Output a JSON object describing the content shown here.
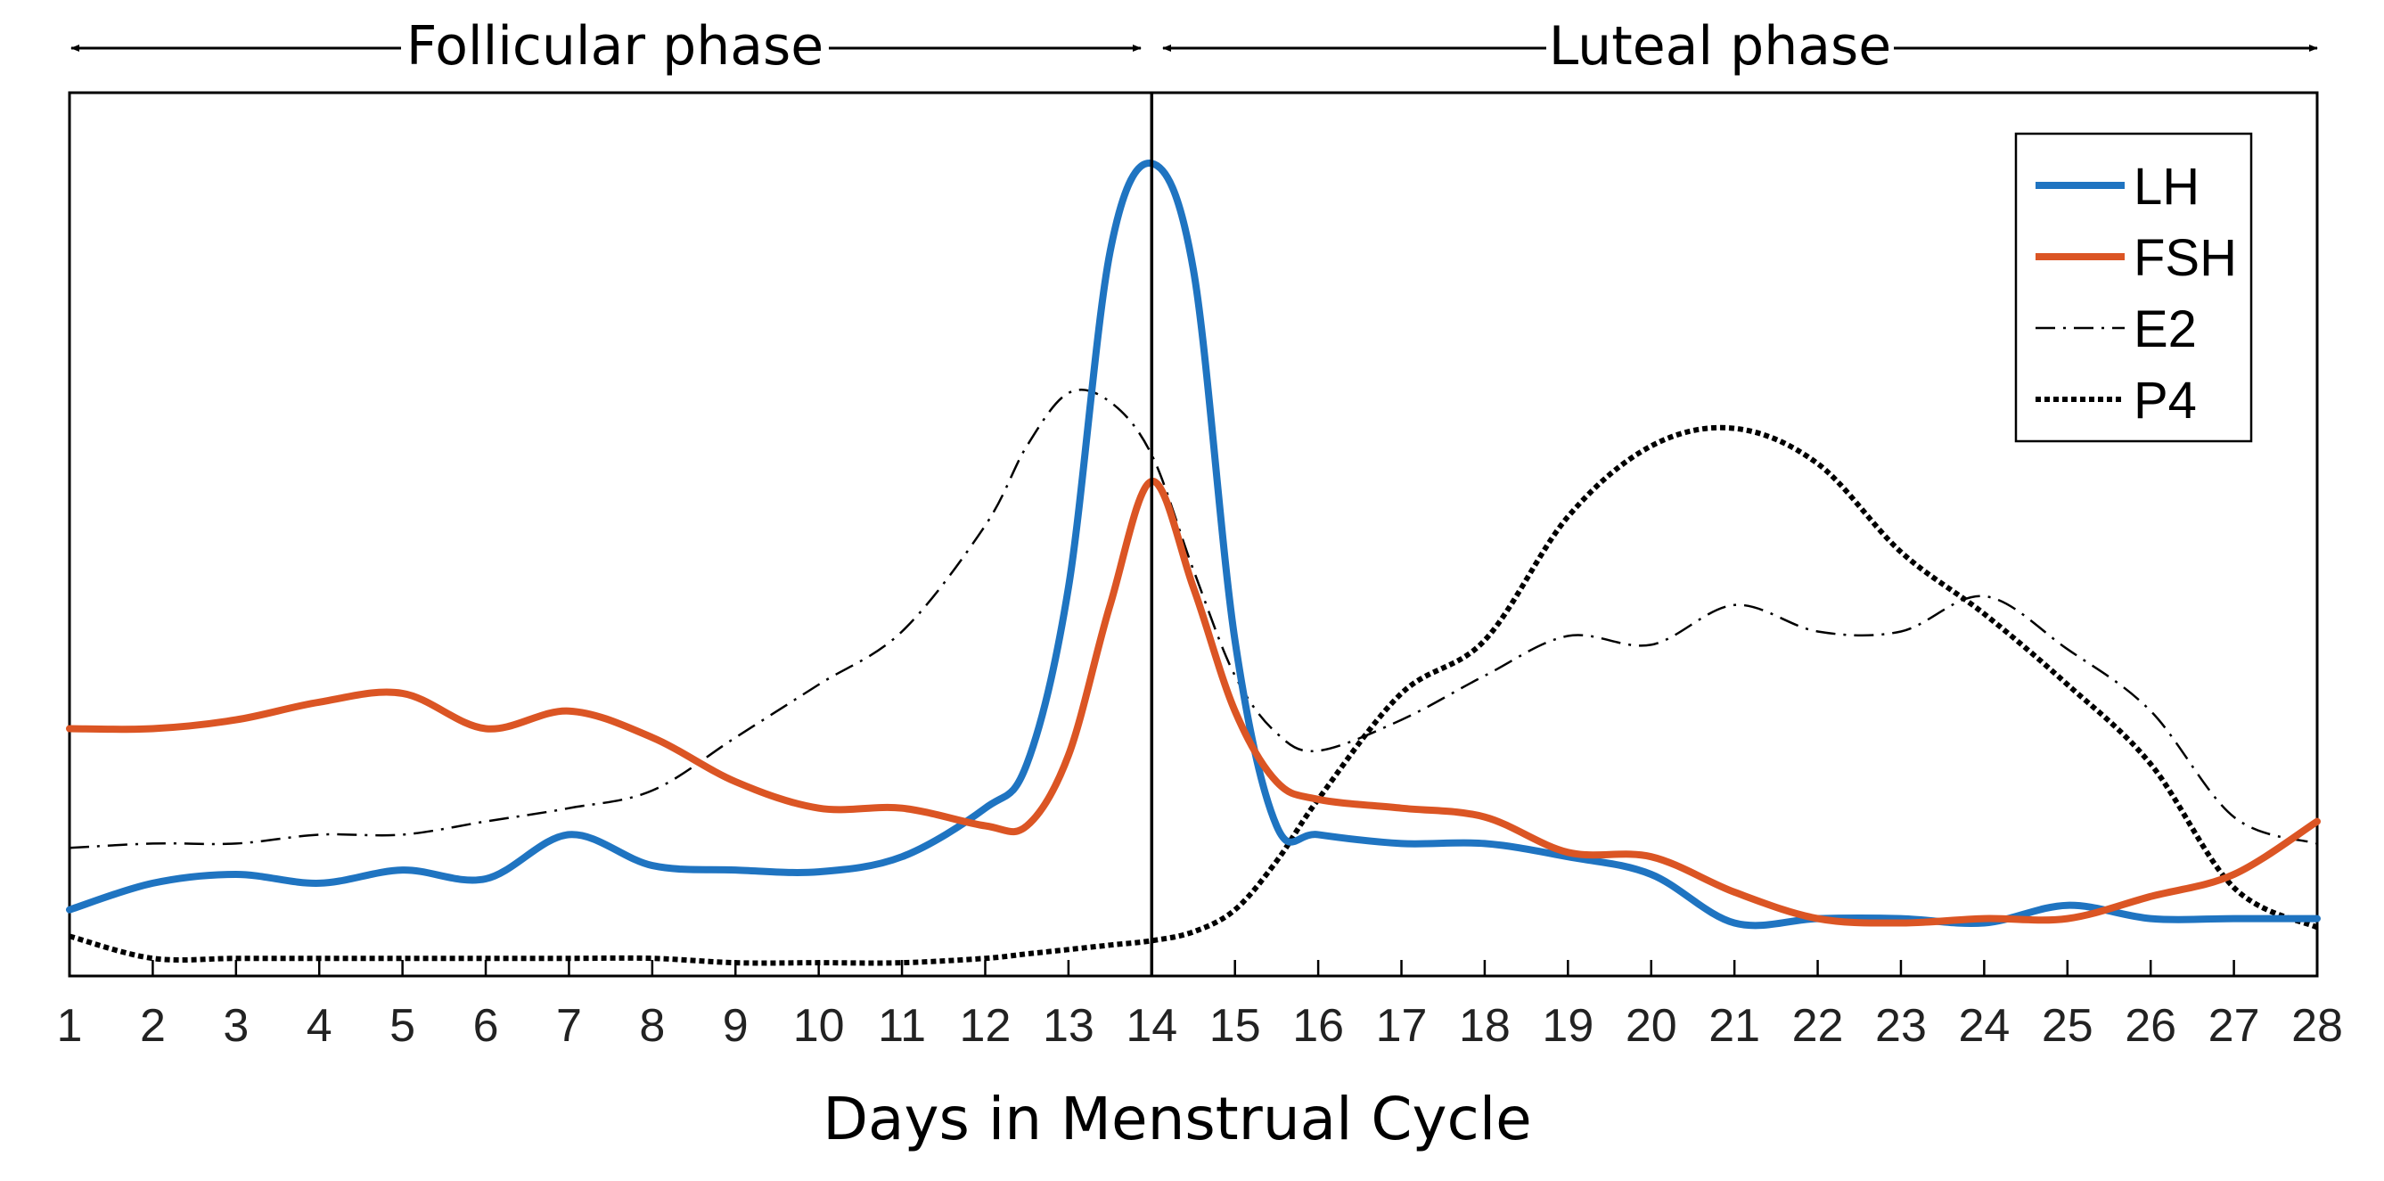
{
  "chart_data": {
    "type": "line",
    "xlabel": "Days in Menstrual Cycle",
    "ylabel": "",
    "xlim": [
      1,
      28
    ],
    "ylim": [
      0,
      100
    ],
    "x_ticks": [
      "1",
      "2",
      "3",
      "4",
      "5",
      "6",
      "7",
      "8",
      "9",
      "10",
      "11",
      "12",
      "13",
      "14",
      "15",
      "16",
      "17",
      "18",
      "19",
      "20",
      "21",
      "22",
      "23",
      "24",
      "25",
      "26",
      "27",
      "28"
    ],
    "phases": [
      {
        "label": "Follicular phase",
        "start": 1,
        "end": 14
      },
      {
        "label": "Luteal phase",
        "start": 14,
        "end": 28
      }
    ],
    "ovulation_day": 14,
    "legend_position": "top-right",
    "series": [
      {
        "name": "LH",
        "color": "#1f74c1",
        "style": "solid",
        "x": [
          1,
          2,
          3,
          4,
          5,
          6,
          7,
          8,
          9,
          10,
          11,
          12,
          12.5,
          13,
          13.5,
          14,
          14.5,
          15,
          15.5,
          16,
          17,
          18,
          19,
          20,
          21,
          22,
          23,
          24,
          25,
          26,
          27,
          28
        ],
        "y": [
          7.5,
          10.5,
          11.5,
          10.5,
          12,
          11,
          16,
          12.5,
          12,
          11.8,
          13.5,
          19,
          24,
          44,
          82,
          92,
          80,
          38,
          17,
          16,
          15,
          15,
          13.5,
          11.5,
          6,
          6.5,
          6.5,
          6,
          8,
          6.5,
          6.5,
          6.5
        ]
      },
      {
        "name": "FSH",
        "color": "#db5524",
        "style": "solid",
        "x": [
          1,
          2,
          3,
          4,
          5,
          6,
          7,
          8,
          9,
          10,
          11,
          12,
          12.5,
          13,
          13.5,
          14,
          14.5,
          15,
          15.5,
          16,
          17,
          18,
          19,
          20,
          21,
          22,
          23,
          24,
          25,
          26,
          27,
          28
        ],
        "y": [
          28,
          28,
          29,
          31,
          32,
          28,
          30,
          27,
          22,
          19,
          19,
          17,
          17,
          25,
          42,
          56,
          44,
          30,
          22,
          20,
          19,
          18,
          14,
          13.5,
          9.5,
          6.5,
          6,
          6.5,
          6.5,
          9,
          11.5,
          17.5
        ]
      },
      {
        "name": "E2",
        "color": "#000000",
        "style": "dash-dot",
        "x": [
          1,
          2,
          3,
          4,
          5,
          6,
          7,
          8,
          9,
          10,
          11,
          12,
          12.5,
          13,
          13.5,
          14,
          14.5,
          15,
          15.5,
          16,
          17,
          18,
          19,
          20,
          21,
          22,
          23,
          24,
          25,
          26,
          27,
          28
        ],
        "y": [
          14.5,
          15,
          15,
          16,
          16,
          17.5,
          19,
          21,
          27,
          33,
          39,
          51,
          60,
          66,
          65,
          59,
          46,
          34,
          27.5,
          25.5,
          29,
          34,
          38.5,
          37.5,
          42,
          39,
          39,
          43,
          37,
          30,
          18,
          15
        ]
      },
      {
        "name": "P4",
        "color": "#000000",
        "style": "dotted",
        "x": [
          1,
          2,
          3,
          4,
          5,
          6,
          7,
          8,
          9,
          10,
          11,
          12,
          12.5,
          13,
          13.5,
          14,
          14.5,
          15,
          15.5,
          16,
          17,
          18,
          19,
          20,
          21,
          22,
          23,
          24,
          25,
          26,
          27,
          28
        ],
        "y": [
          4.5,
          2,
          2,
          2,
          2,
          2,
          2,
          2,
          1.5,
          1.5,
          1.5,
          2,
          2.5,
          3,
          3.5,
          4,
          5,
          7.5,
          13,
          20,
          32,
          38,
          52,
          60,
          62,
          58,
          48,
          41,
          33,
          24,
          10,
          5.5
        ]
      }
    ]
  }
}
